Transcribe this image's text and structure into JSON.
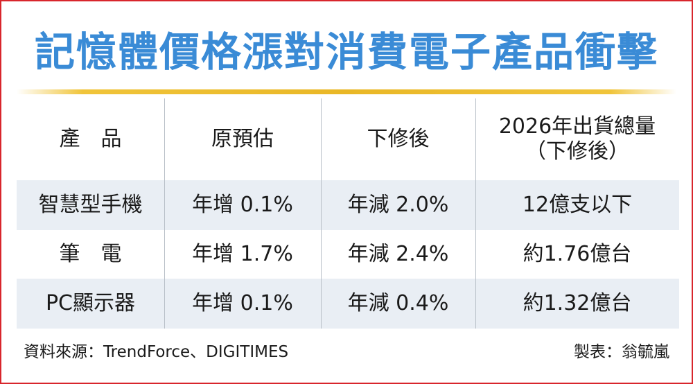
{
  "title": "記憶體價格漲對消費電子產品衝擊",
  "table": {
    "headers": [
      "產　品",
      "原預估",
      "下修後",
      "2026年出貨總量\n（下修後）"
    ],
    "rows": [
      [
        "智慧型手機",
        "年增 0.1%",
        "年減 2.0%",
        "12億支以下"
      ],
      [
        "筆　電",
        "年增 1.7%",
        "年減 2.4%",
        "約1.76億台"
      ],
      [
        "PC顯示器",
        "年增 0.1%",
        "年減 0.4%",
        "約1.32億台"
      ]
    ]
  },
  "footer": {
    "source": "資料來源：TrendForce、DIGITIMES",
    "maker": "製表：翁毓嵐"
  },
  "colors": {
    "title": "#3a8bd6",
    "border": "#d8262c",
    "rule": "#e9b726",
    "row_shade": "#e9eef4"
  }
}
